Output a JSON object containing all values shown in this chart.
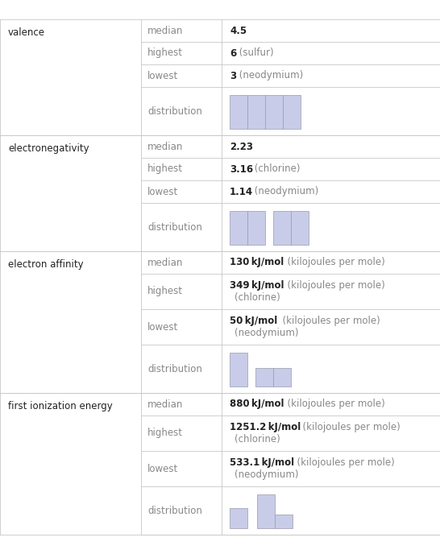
{
  "sections": [
    {
      "name": "valence",
      "rows": [
        {
          "label": "median",
          "bold": "4.5",
          "normal": ""
        },
        {
          "label": "highest",
          "bold": "6",
          "normal": " (sulfur)"
        },
        {
          "label": "lowest",
          "bold": "3",
          "normal": " (neodymium)"
        },
        {
          "label": "distribution",
          "hist_type": "valence"
        }
      ]
    },
    {
      "name": "electronegativity",
      "rows": [
        {
          "label": "median",
          "bold": "2.23",
          "normal": ""
        },
        {
          "label": "highest",
          "bold": "3.16",
          "normal": " (chlorine)"
        },
        {
          "label": "lowest",
          "bold": "1.14",
          "normal": " (neodymium)"
        },
        {
          "label": "distribution",
          "hist_type": "electronegativity"
        }
      ]
    },
    {
      "name": "electron affinity",
      "rows": [
        {
          "label": "median",
          "bold": "130 kJ/mol",
          "normal": "  (kilojoules per mole)"
        },
        {
          "label": "highest",
          "bold": "349 kJ/mol",
          "normal": "  (kilojoules per mole)",
          "line2": "  (chlorine)"
        },
        {
          "label": "lowest",
          "bold": "50 kJ/mol",
          "normal": "  (kilojoules per mole)",
          "line2": "  (neodymium)"
        },
        {
          "label": "distribution",
          "hist_type": "electron_affinity"
        }
      ]
    },
    {
      "name": "first ionization energy",
      "rows": [
        {
          "label": "median",
          "bold": "880 kJ/mol",
          "normal": "  (kilojoules per mole)"
        },
        {
          "label": "highest",
          "bold": "1251.2 kJ/mol",
          "normal": "  (kilojoules per mole)",
          "line2": "  (chlorine)"
        },
        {
          "label": "lowest",
          "bold": "533.1 kJ/mol",
          "normal": "  (kilojoules per mole)",
          "line2": "  (neodymium)"
        },
        {
          "label": "distribution",
          "hist_type": "first_ionization"
        }
      ]
    }
  ],
  "bg_color": "#ffffff",
  "grid_color": "#c8c8c8",
  "bar_fill": "#c8cce8",
  "bar_edge": "#9999aa",
  "text_dark": "#222222",
  "text_gray": "#888888",
  "text_section": "#222222"
}
